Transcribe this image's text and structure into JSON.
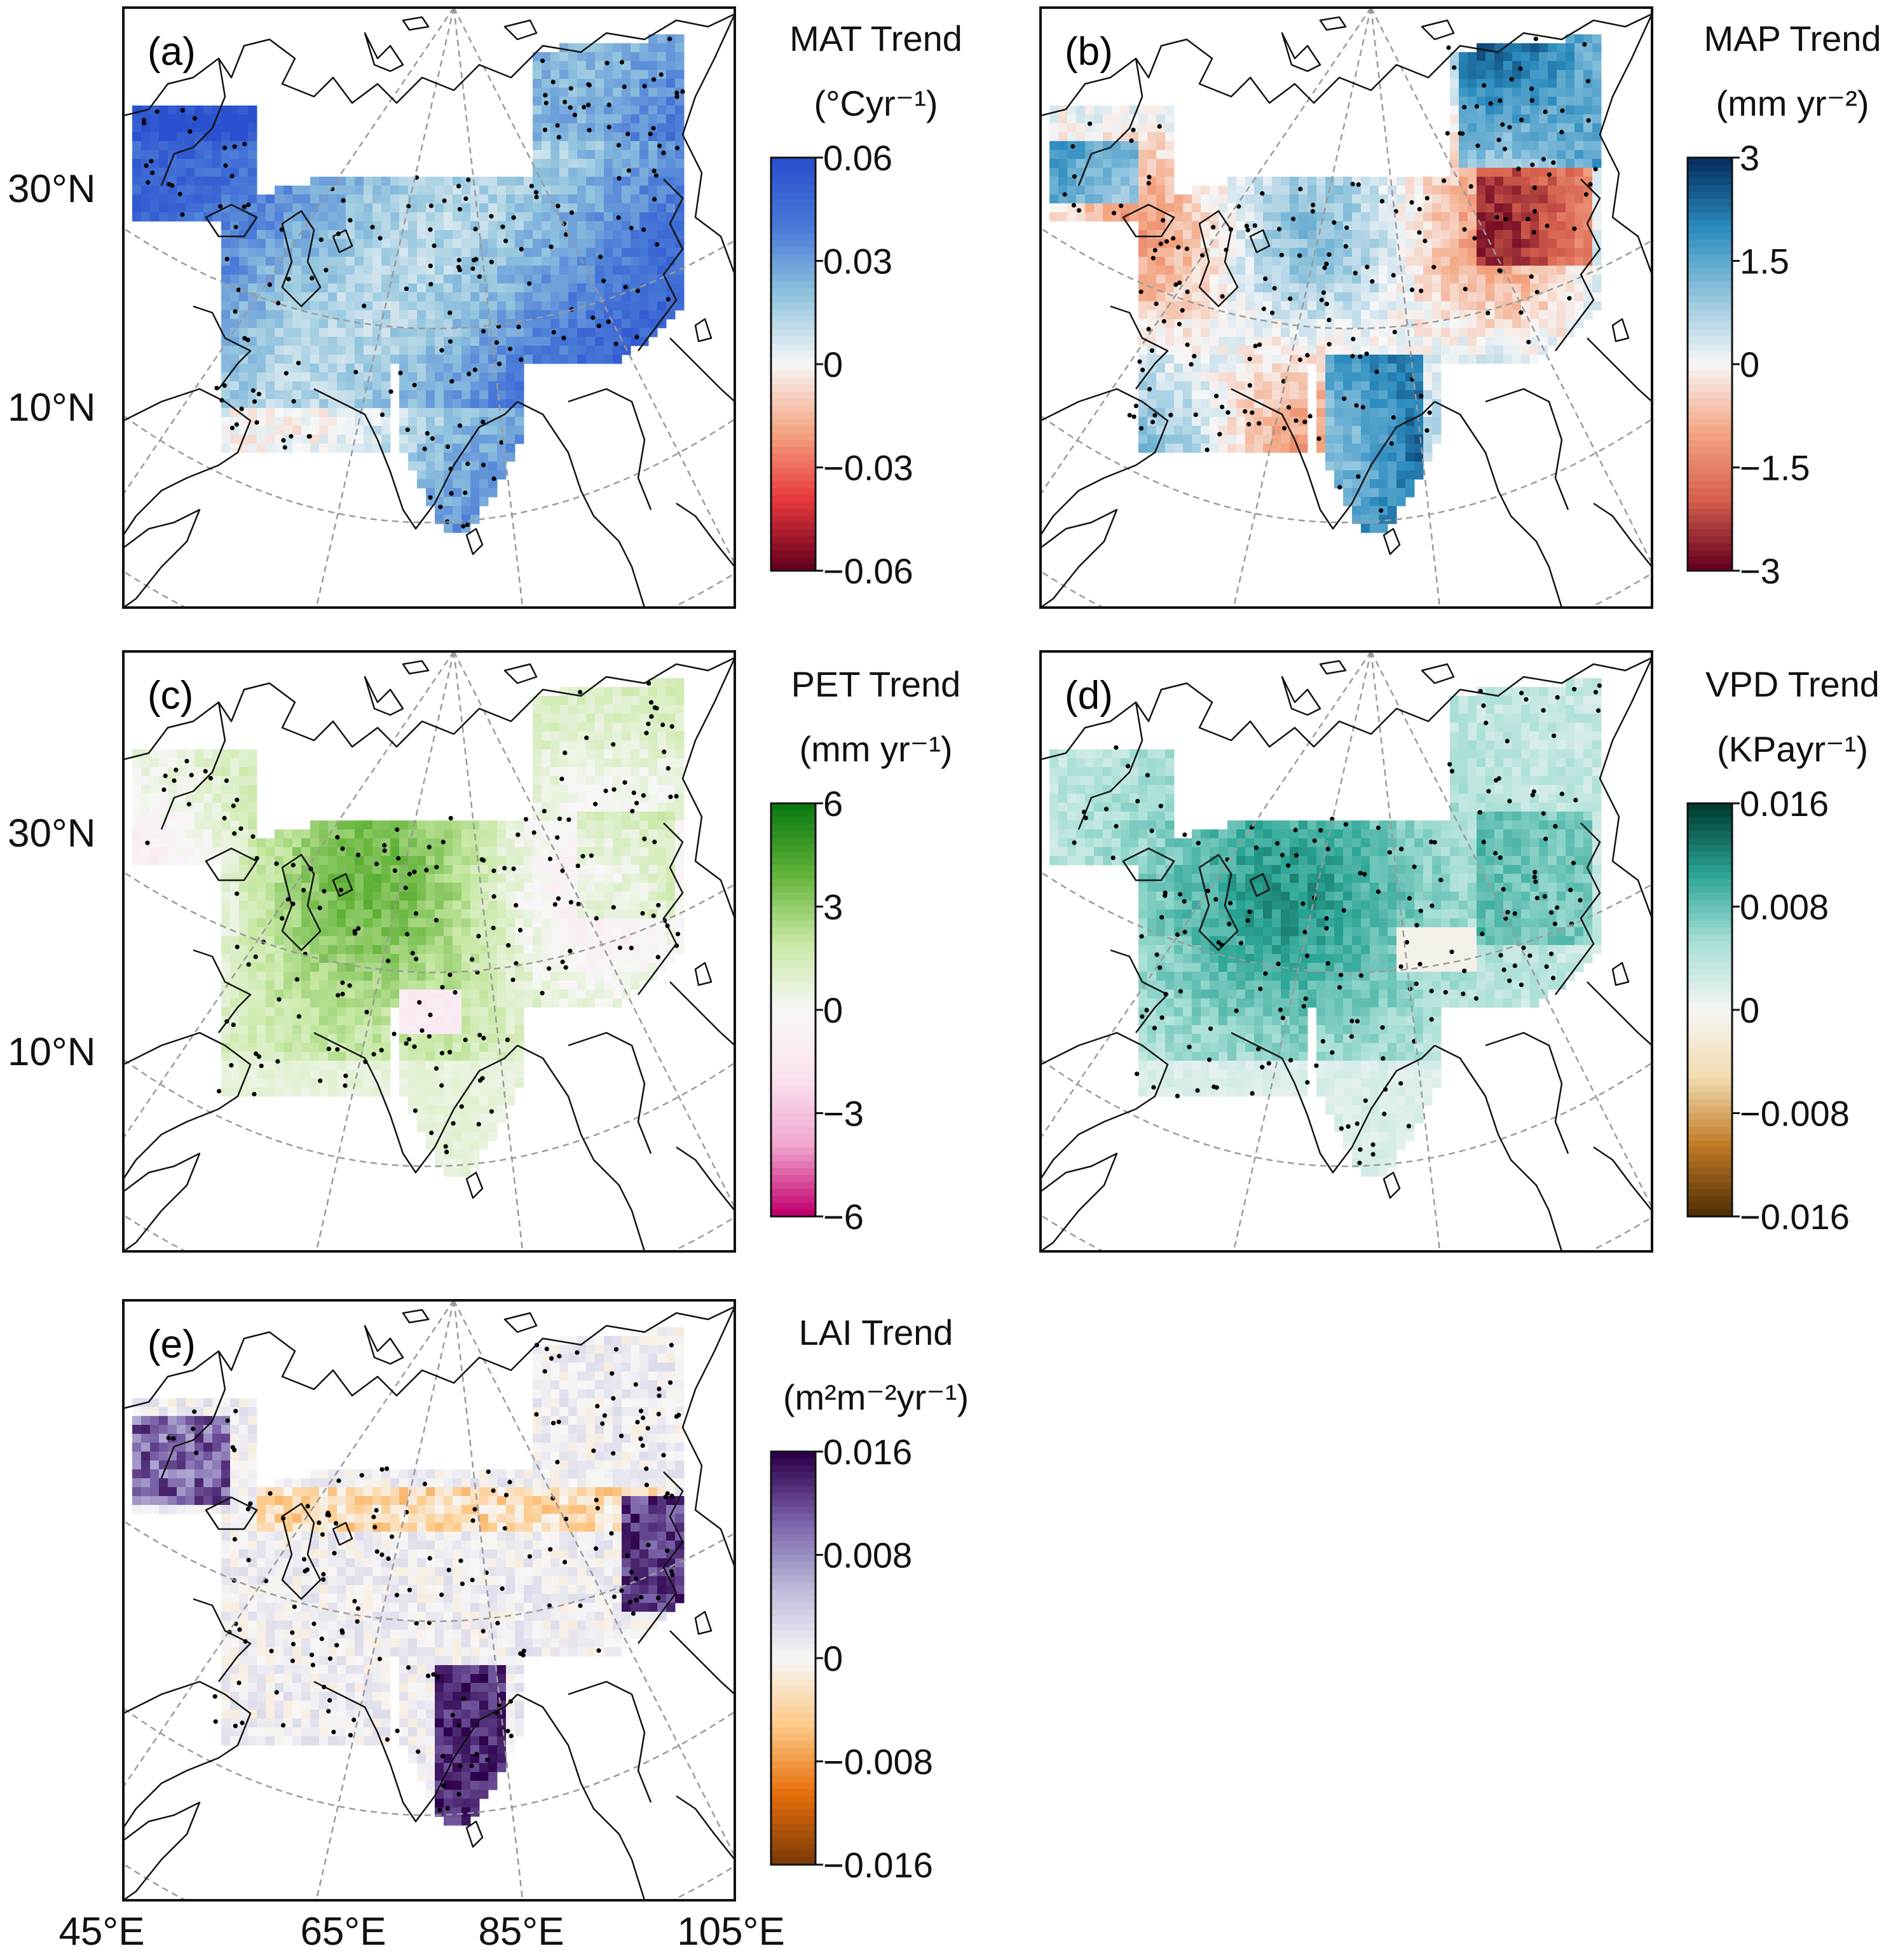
{
  "figure": {
    "lat_labels": [
      "30°N",
      "10°N"
    ],
    "lon_labels": [
      "45°E",
      "65°E",
      "85°E",
      "105°E"
    ]
  },
  "panels": [
    {
      "id": "a",
      "label": "(a)",
      "variable": "MAT Trend",
      "units": "(°Cyr⁻¹)",
      "cmap": [
        "#67001f",
        "#e8383c",
        "#f4a582",
        "#f7f7f7",
        "#92c5de",
        "#4a7bd8",
        "#2a4fcf"
      ],
      "ticks": [
        "0.06",
        "0.03",
        "0",
        "−0.03",
        "−0.06"
      ]
    },
    {
      "id": "b",
      "label": "(b)",
      "variable": "MAP Trend",
      "units": "(mm yr⁻²)",
      "cmap": [
        "#67001f",
        "#d6604d",
        "#f4a582",
        "#f7f7f7",
        "#92c5de",
        "#2c8cbf",
        "#053061"
      ],
      "ticks": [
        "3",
        "1.5",
        "0",
        "−1.5",
        "−3"
      ]
    },
    {
      "id": "c",
      "label": "(c)",
      "variable": "PET Trend",
      "units": "(mm yr⁻¹)",
      "cmap": [
        "#c2006f",
        "#f1a6cf",
        "#fbe3f0",
        "#f7f7f7",
        "#c7e8a3",
        "#62b339",
        "#0b7a12"
      ],
      "ticks": [
        "6",
        "3",
        "0",
        "−3",
        "−6"
      ]
    },
    {
      "id": "d",
      "label": "(d)",
      "variable": "VPD Trend",
      "units": "(KPayr⁻¹)",
      "cmap": [
        "#543005",
        "#bf7a27",
        "#f2dcae",
        "#f5f5f5",
        "#a7dfd6",
        "#2aa595",
        "#003c30"
      ],
      "ticks": [
        "0.016",
        "0.008",
        "0",
        "−0.008",
        "−0.016"
      ]
    },
    {
      "id": "e",
      "label": "(e)",
      "variable": "LAI Trend",
      "units": "(m²m⁻²yr⁻¹)",
      "cmap": [
        "#7f3b08",
        "#e66e0a",
        "#fdc987",
        "#f7f7f7",
        "#bebcdc",
        "#7b63aa",
        "#2d004b"
      ],
      "ticks": [
        "0.016",
        "0.008",
        "0",
        "−0.008",
        "−0.016"
      ]
    }
  ]
}
